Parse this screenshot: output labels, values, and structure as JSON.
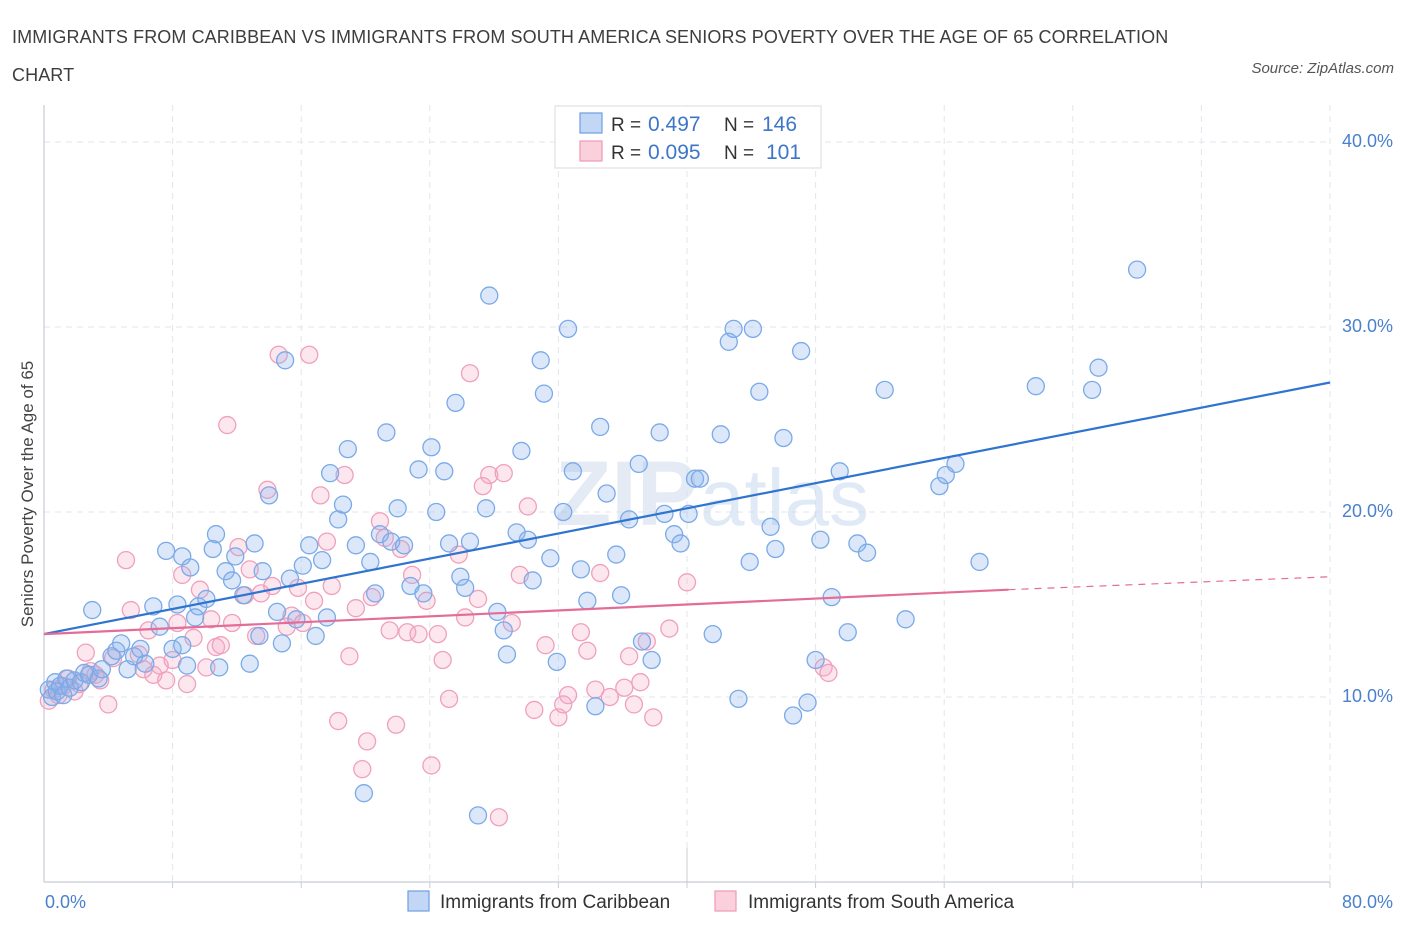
{
  "title": "IMMIGRANTS FROM CARIBBEAN VS IMMIGRANTS FROM SOUTH AMERICA SENIORS POVERTY OVER THE AGE OF 65 CORRELATION CHART",
  "source": "Source: ZipAtlas.com",
  "colors": {
    "blue": "#7aaae8",
    "blue_line": "#2e74d0",
    "pink": "#f0a0bc",
    "pink_line": "#e46c98",
    "tick_text": "#4a80cc",
    "grid": "#e2e6ee"
  },
  "chart_data": {
    "type": "scatter",
    "title": "IMMIGRANTS FROM CARIBBEAN VS IMMIGRANTS FROM SOUTH AMERICA SENIORS POVERTY OVER THE AGE OF 65 CORRELATION CHART",
    "xlabel": "",
    "ylabel": "Seniors Poverty Over the Age of 65",
    "xlim": [
      0,
      80
    ],
    "ylim": [
      0,
      42
    ],
    "x_tick_labels": [
      "0.0%",
      "80.0%"
    ],
    "y_ticks": [
      10,
      20,
      30,
      40
    ],
    "y_tick_labels": [
      "10.0%",
      "20.0%",
      "30.0%",
      "40.0%"
    ],
    "grid": true,
    "watermark": "ZIPatlas",
    "legend": [
      {
        "name": "Immigrants from Caribbean",
        "r_label": "R =",
        "r_value": "0.497",
        "n_label": "N =",
        "n_value": "146"
      },
      {
        "name": "Immigrants from South America",
        "r_label": "R =",
        "r_value": "0.095",
        "n_label": "N =",
        "n_value": "101"
      }
    ],
    "series": [
      {
        "name": "Immigrants from Caribbean",
        "trend": {
          "x0": 0,
          "y0": 13.4,
          "x1": 80,
          "y1": 27.0
        },
        "points": [
          [
            0.3,
            10.4
          ],
          [
            0.5,
            10.0
          ],
          [
            0.7,
            10.8
          ],
          [
            0.8,
            10.3
          ],
          [
            1.0,
            10.6
          ],
          [
            1.2,
            10.1
          ],
          [
            1.4,
            11.0
          ],
          [
            1.6,
            10.5
          ],
          [
            1.9,
            10.9
          ],
          [
            2.3,
            10.8
          ],
          [
            2.5,
            11.3
          ],
          [
            2.8,
            11.2
          ],
          [
            3.0,
            14.7
          ],
          [
            3.4,
            11.0
          ],
          [
            3.6,
            11.5
          ],
          [
            4.2,
            12.2
          ],
          [
            4.5,
            12.5
          ],
          [
            4.8,
            12.9
          ],
          [
            5.2,
            11.5
          ],
          [
            5.6,
            12.2
          ],
          [
            6.0,
            12.6
          ],
          [
            6.3,
            11.8
          ],
          [
            6.8,
            14.9
          ],
          [
            7.2,
            13.8
          ],
          [
            7.6,
            17.9
          ],
          [
            8.0,
            12.6
          ],
          [
            8.3,
            15.0
          ],
          [
            8.6,
            17.6
          ],
          [
            8.9,
            11.7
          ],
          [
            9.1,
            17.0
          ],
          [
            9.6,
            14.9
          ],
          [
            9.4,
            14.3
          ],
          [
            10.1,
            15.3
          ],
          [
            10.5,
            18.0
          ],
          [
            10.9,
            11.6
          ],
          [
            10.7,
            18.8
          ],
          [
            11.3,
            16.8
          ],
          [
            11.7,
            16.3
          ],
          [
            11.9,
            17.6
          ],
          [
            12.4,
            15.5
          ],
          [
            12.8,
            11.8
          ],
          [
            13.1,
            18.3
          ],
          [
            13.4,
            13.3
          ],
          [
            13.6,
            16.8
          ],
          [
            14.0,
            20.9
          ],
          [
            14.5,
            14.6
          ],
          [
            14.8,
            12.9
          ],
          [
            15.0,
            28.2
          ],
          [
            15.3,
            16.4
          ],
          [
            15.7,
            14.2
          ],
          [
            16.1,
            17.1
          ],
          [
            16.5,
            18.2
          ],
          [
            16.9,
            13.3
          ],
          [
            17.3,
            17.4
          ],
          [
            17.6,
            14.3
          ],
          [
            17.8,
            22.1
          ],
          [
            18.3,
            19.6
          ],
          [
            18.6,
            20.4
          ],
          [
            18.9,
            23.4
          ],
          [
            19.4,
            18.2
          ],
          [
            19.9,
            4.8
          ],
          [
            20.3,
            17.3
          ],
          [
            20.6,
            15.6
          ],
          [
            20.9,
            18.8
          ],
          [
            21.3,
            24.3
          ],
          [
            21.6,
            18.4
          ],
          [
            22.0,
            20.2
          ],
          [
            22.4,
            18.2
          ],
          [
            22.8,
            16.0
          ],
          [
            23.3,
            22.3
          ],
          [
            23.6,
            15.6
          ],
          [
            24.1,
            23.5
          ],
          [
            24.4,
            20.0
          ],
          [
            24.9,
            22.2
          ],
          [
            25.2,
            18.3
          ],
          [
            25.6,
            25.9
          ],
          [
            25.9,
            16.5
          ],
          [
            26.2,
            15.9
          ],
          [
            26.5,
            18.4
          ],
          [
            27.0,
            3.6
          ],
          [
            27.5,
            20.2
          ],
          [
            27.7,
            31.7
          ],
          [
            28.2,
            14.6
          ],
          [
            28.6,
            13.6
          ],
          [
            28.8,
            12.3
          ],
          [
            29.4,
            18.9
          ],
          [
            29.7,
            23.3
          ],
          [
            30.1,
            18.5
          ],
          [
            30.4,
            16.3
          ],
          [
            30.9,
            28.2
          ],
          [
            31.1,
            26.4
          ],
          [
            31.5,
            17.5
          ],
          [
            31.9,
            11.9
          ],
          [
            32.3,
            20.0
          ],
          [
            32.6,
            29.9
          ],
          [
            32.9,
            22.2
          ],
          [
            33.4,
            16.9
          ],
          [
            33.8,
            15.2
          ],
          [
            34.3,
            9.5
          ],
          [
            34.6,
            24.6
          ],
          [
            35.0,
            21.0
          ],
          [
            35.6,
            17.7
          ],
          [
            35.9,
            15.5
          ],
          [
            36.4,
            19.6
          ],
          [
            37.0,
            22.6
          ],
          [
            37.2,
            13.0
          ],
          [
            37.8,
            12.0
          ],
          [
            38.3,
            24.3
          ],
          [
            38.6,
            19.9
          ],
          [
            39.2,
            18.8
          ],
          [
            39.6,
            18.3
          ],
          [
            40.1,
            19.9
          ],
          [
            40.5,
            21.8
          ],
          [
            40.8,
            21.8
          ],
          [
            41.6,
            13.4
          ],
          [
            42.1,
            24.2
          ],
          [
            42.6,
            29.2
          ],
          [
            42.9,
            29.9
          ],
          [
            43.2,
            9.9
          ],
          [
            43.9,
            17.3
          ],
          [
            44.1,
            29.9
          ],
          [
            44.5,
            26.5
          ],
          [
            45.2,
            19.2
          ],
          [
            45.5,
            18.0
          ],
          [
            46.0,
            24.0
          ],
          [
            47.1,
            28.7
          ],
          [
            47.5,
            9.7
          ],
          [
            48.0,
            12.0
          ],
          [
            48.3,
            18.5
          ],
          [
            49.0,
            15.4
          ],
          [
            49.5,
            22.2
          ],
          [
            50.0,
            13.5
          ],
          [
            50.6,
            18.3
          ],
          [
            51.2,
            17.8
          ],
          [
            52.3,
            26.6
          ],
          [
            53.6,
            14.2
          ],
          [
            55.7,
            21.4
          ],
          [
            56.1,
            22.0
          ],
          [
            56.7,
            22.6
          ],
          [
            58.2,
            17.3
          ],
          [
            61.7,
            26.8
          ],
          [
            65.2,
            26.6
          ],
          [
            65.6,
            27.8
          ],
          [
            68.0,
            33.1
          ],
          [
            46.6,
            9.0
          ],
          [
            8.6,
            12.8
          ]
        ]
      },
      {
        "name": "Immigrants from South America",
        "trend": {
          "x0": 0,
          "y0": 13.4,
          "x1": 60,
          "y1": 15.8,
          "dash_to_x": 80,
          "dash_to_y": 16.5
        },
        "points": [
          [
            0.3,
            9.8
          ],
          [
            0.6,
            10.4
          ],
          [
            0.9,
            10.1
          ],
          [
            1.2,
            10.6
          ],
          [
            1.5,
            11.0
          ],
          [
            1.9,
            10.3
          ],
          [
            2.2,
            10.7
          ],
          [
            2.6,
            12.4
          ],
          [
            2.9,
            11.4
          ],
          [
            3.2,
            11.2
          ],
          [
            3.5,
            10.9
          ],
          [
            4.0,
            9.6
          ],
          [
            4.3,
            12.1
          ],
          [
            5.1,
            17.4
          ],
          [
            5.4,
            14.7
          ],
          [
            5.9,
            12.3
          ],
          [
            6.2,
            11.5
          ],
          [
            6.5,
            13.6
          ],
          [
            6.8,
            11.2
          ],
          [
            7.2,
            11.7
          ],
          [
            7.6,
            10.9
          ],
          [
            8.0,
            12.0
          ],
          [
            8.3,
            14.0
          ],
          [
            8.6,
            16.6
          ],
          [
            8.9,
            10.7
          ],
          [
            9.3,
            13.2
          ],
          [
            9.7,
            15.8
          ],
          [
            10.1,
            11.6
          ],
          [
            10.4,
            14.2
          ],
          [
            10.7,
            12.7
          ],
          [
            11.0,
            12.8
          ],
          [
            11.4,
            24.7
          ],
          [
            11.7,
            14.0
          ],
          [
            12.1,
            18.1
          ],
          [
            12.5,
            15.5
          ],
          [
            12.8,
            16.9
          ],
          [
            13.2,
            13.3
          ],
          [
            13.5,
            15.6
          ],
          [
            13.9,
            21.2
          ],
          [
            14.2,
            16.0
          ],
          [
            14.6,
            28.5
          ],
          [
            15.1,
            13.8
          ],
          [
            15.4,
            14.4
          ],
          [
            15.8,
            15.9
          ],
          [
            16.1,
            14.0
          ],
          [
            16.5,
            28.5
          ],
          [
            16.8,
            15.2
          ],
          [
            17.2,
            20.9
          ],
          [
            17.6,
            18.4
          ],
          [
            17.9,
            16.0
          ],
          [
            18.3,
            8.7
          ],
          [
            18.7,
            22.0
          ],
          [
            19.0,
            12.2
          ],
          [
            19.4,
            14.8
          ],
          [
            19.8,
            6.1
          ],
          [
            20.1,
            7.6
          ],
          [
            20.4,
            15.4
          ],
          [
            20.9,
            19.5
          ],
          [
            21.2,
            18.6
          ],
          [
            21.5,
            13.6
          ],
          [
            21.9,
            8.5
          ],
          [
            22.2,
            18.0
          ],
          [
            22.6,
            13.5
          ],
          [
            22.9,
            16.6
          ],
          [
            23.3,
            13.4
          ],
          [
            23.8,
            15.2
          ],
          [
            24.1,
            6.3
          ],
          [
            24.5,
            13.4
          ],
          [
            24.8,
            12.0
          ],
          [
            25.2,
            9.9
          ],
          [
            25.8,
            17.7
          ],
          [
            26.2,
            14.3
          ],
          [
            26.5,
            27.5
          ],
          [
            27.0,
            15.3
          ],
          [
            27.3,
            21.4
          ],
          [
            27.7,
            22.0
          ],
          [
            28.3,
            3.5
          ],
          [
            28.6,
            22.1
          ],
          [
            29.1,
            14.0
          ],
          [
            29.6,
            16.6
          ],
          [
            30.1,
            20.3
          ],
          [
            30.5,
            9.3
          ],
          [
            31.2,
            12.8
          ],
          [
            32.0,
            8.9
          ],
          [
            32.3,
            9.6
          ],
          [
            32.6,
            10.1
          ],
          [
            33.4,
            13.5
          ],
          [
            33.8,
            12.5
          ],
          [
            34.3,
            10.4
          ],
          [
            34.6,
            16.7
          ],
          [
            35.2,
            10.0
          ],
          [
            36.1,
            10.5
          ],
          [
            36.7,
            9.6
          ],
          [
            37.5,
            13.0
          ],
          [
            37.9,
            8.9
          ],
          [
            37.1,
            10.8
          ],
          [
            36.4,
            12.2
          ],
          [
            38.9,
            13.7
          ],
          [
            40.0,
            16.2
          ],
          [
            48.5,
            11.6
          ],
          [
            48.8,
            11.3
          ]
        ]
      }
    ]
  }
}
